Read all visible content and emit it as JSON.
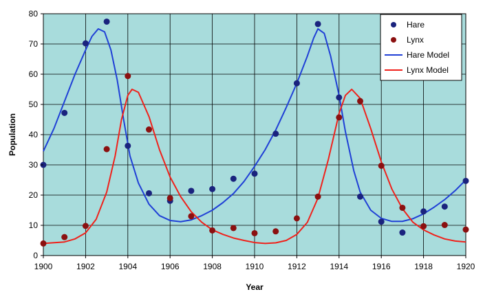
{
  "chart_data": {
    "type": "line",
    "title": "",
    "xlabel": "Year",
    "ylabel": "Population",
    "xlim": [
      1900,
      1920
    ],
    "ylim": [
      0,
      80
    ],
    "x_ticks": [
      1900,
      1902,
      1904,
      1906,
      1908,
      1910,
      1912,
      1914,
      1916,
      1918,
      1920
    ],
    "y_ticks": [
      0,
      10,
      20,
      30,
      40,
      50,
      60,
      70,
      80
    ],
    "grid": true,
    "legend_position": "top-right",
    "plot_background": "#a8dcdc",
    "series": [
      {
        "name": "Hare",
        "kind": "scatter",
        "color": "#1a237e",
        "points": [
          [
            1900,
            30
          ],
          [
            1901,
            47.2
          ],
          [
            1902,
            70.2
          ],
          [
            1903,
            77.4
          ],
          [
            1904,
            36.3
          ],
          [
            1905,
            20.6
          ],
          [
            1906,
            18.1
          ],
          [
            1907,
            21.4
          ],
          [
            1908,
            22
          ],
          [
            1909,
            25.4
          ],
          [
            1910,
            27.1
          ],
          [
            1911,
            40.3
          ],
          [
            1912,
            57
          ],
          [
            1913,
            76.6
          ],
          [
            1914,
            52.3
          ],
          [
            1915,
            19.5
          ],
          [
            1916,
            11.2
          ],
          [
            1917,
            7.6
          ],
          [
            1918,
            14.6
          ],
          [
            1919,
            16.2
          ],
          [
            1920,
            24.7
          ]
        ]
      },
      {
        "name": "Lynx",
        "kind": "scatter",
        "color": "#8b1010",
        "points": [
          [
            1900,
            4
          ],
          [
            1901,
            6.1
          ],
          [
            1902,
            9.8
          ],
          [
            1903,
            35.2
          ],
          [
            1904,
            59.4
          ],
          [
            1905,
            41.7
          ],
          [
            1906,
            19
          ],
          [
            1907,
            13
          ],
          [
            1908,
            8.3
          ],
          [
            1909,
            9.1
          ],
          [
            1910,
            7.4
          ],
          [
            1911,
            8
          ],
          [
            1912,
            12.3
          ],
          [
            1913,
            19.5
          ],
          [
            1914,
            45.7
          ],
          [
            1915,
            51.1
          ],
          [
            1916,
            29.7
          ],
          [
            1917,
            15.8
          ],
          [
            1918,
            9.7
          ],
          [
            1919,
            10.1
          ],
          [
            1920,
            8.6
          ]
        ]
      },
      {
        "name": "Hare Model",
        "kind": "line",
        "color": "#1f3fd6",
        "points": [
          [
            1900,
            34.5
          ],
          [
            1900.5,
            42
          ],
          [
            1901,
            51
          ],
          [
            1901.5,
            60
          ],
          [
            1902,
            68
          ],
          [
            1902.3,
            72.5
          ],
          [
            1902.6,
            75
          ],
          [
            1902.9,
            74
          ],
          [
            1903.2,
            68
          ],
          [
            1903.5,
            58
          ],
          [
            1903.8,
            45
          ],
          [
            1904.1,
            33
          ],
          [
            1904.5,
            24
          ],
          [
            1905,
            17
          ],
          [
            1905.5,
            13.2
          ],
          [
            1906,
            11.6
          ],
          [
            1906.5,
            11.2
          ],
          [
            1907,
            11.8
          ],
          [
            1907.5,
            13.2
          ],
          [
            1908,
            15
          ],
          [
            1908.5,
            17.5
          ],
          [
            1909,
            20.5
          ],
          [
            1909.5,
            24.5
          ],
          [
            1910,
            29.5
          ],
          [
            1910.5,
            35
          ],
          [
            1911,
            41.5
          ],
          [
            1911.5,
            49
          ],
          [
            1912,
            57
          ],
          [
            1912.5,
            66
          ],
          [
            1912.8,
            72
          ],
          [
            1913,
            75
          ],
          [
            1913.3,
            73.5
          ],
          [
            1913.6,
            66
          ],
          [
            1914,
            53
          ],
          [
            1914.3,
            41
          ],
          [
            1914.7,
            28
          ],
          [
            1915,
            21
          ],
          [
            1915.5,
            15
          ],
          [
            1916,
            12.3
          ],
          [
            1916.5,
            11.3
          ],
          [
            1917,
            11.3
          ],
          [
            1917.5,
            12.2
          ],
          [
            1918,
            13.8
          ],
          [
            1918.5,
            16
          ],
          [
            1919,
            18.5
          ],
          [
            1919.5,
            21.5
          ],
          [
            1920,
            25
          ]
        ]
      },
      {
        "name": "Lynx Model",
        "kind": "line",
        "color": "#f0201a",
        "points": [
          [
            1900,
            4
          ],
          [
            1901,
            4.5
          ],
          [
            1901.5,
            5.5
          ],
          [
            1902,
            7.5
          ],
          [
            1902.5,
            12
          ],
          [
            1903,
            21
          ],
          [
            1903.4,
            33
          ],
          [
            1903.7,
            45
          ],
          [
            1904,
            53
          ],
          [
            1904.2,
            55
          ],
          [
            1904.5,
            54
          ],
          [
            1905,
            46
          ],
          [
            1905.5,
            35
          ],
          [
            1906,
            26
          ],
          [
            1906.5,
            19.5
          ],
          [
            1907,
            14.5
          ],
          [
            1907.5,
            11
          ],
          [
            1908,
            8.5
          ],
          [
            1908.5,
            7
          ],
          [
            1909,
            5.8
          ],
          [
            1909.5,
            5
          ],
          [
            1910,
            4.3
          ],
          [
            1910.5,
            4
          ],
          [
            1911,
            4.2
          ],
          [
            1911.5,
            5
          ],
          [
            1912,
            7
          ],
          [
            1912.5,
            11
          ],
          [
            1913,
            19
          ],
          [
            1913.5,
            32
          ],
          [
            1914,
            47
          ],
          [
            1914.3,
            53
          ],
          [
            1914.6,
            55
          ],
          [
            1915,
            52
          ],
          [
            1915.5,
            42
          ],
          [
            1916,
            31
          ],
          [
            1916.5,
            22
          ],
          [
            1917,
            15.5
          ],
          [
            1917.5,
            11
          ],
          [
            1918,
            8.5
          ],
          [
            1918.5,
            6.8
          ],
          [
            1919,
            5.5
          ],
          [
            1919.5,
            4.8
          ],
          [
            1920,
            4.5
          ]
        ]
      }
    ]
  }
}
